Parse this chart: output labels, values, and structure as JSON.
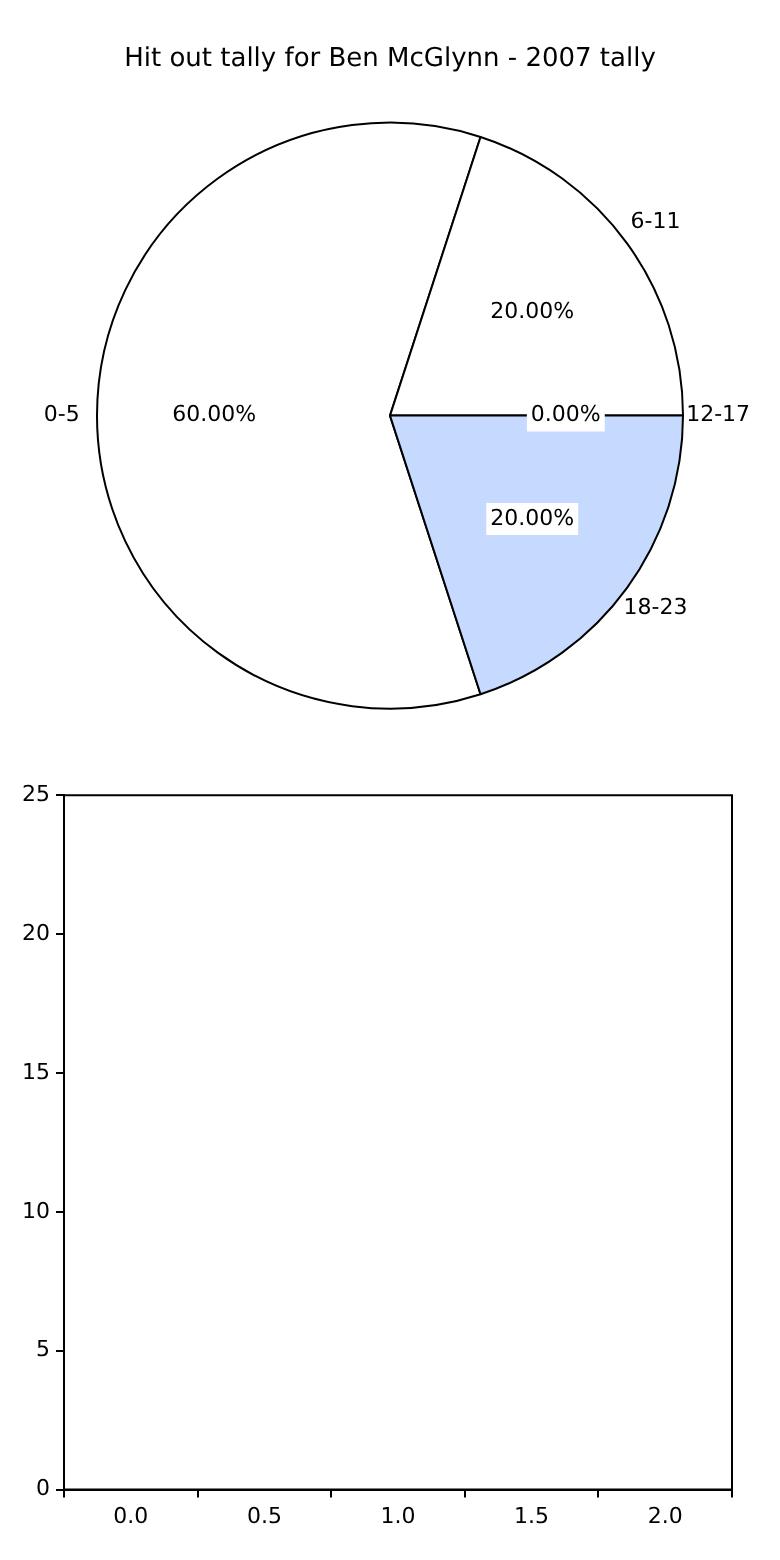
{
  "chart_data": [
    {
      "type": "pie",
      "title": "Hit out tally for Ben McGlynn - 2007 tally",
      "categories": [
        "0-5",
        "6-11",
        "12-17",
        "18-23"
      ],
      "values": [
        60,
        20,
        0,
        20
      ],
      "value_labels": [
        "60.00%",
        "20.00%",
        "0.00%",
        "20.00%"
      ],
      "colors": [
        "#ffffff",
        "#ffffff",
        "#ffffff",
        "#c6d9ff"
      ],
      "legend": false
    },
    {
      "type": "bar",
      "xlim": [
        -0.25,
        2.25
      ],
      "xticks": [
        {
          "value": 0,
          "label": "0.0"
        },
        {
          "value": 0.5,
          "label": "0.5"
        },
        {
          "value": 1,
          "label": "1.0"
        },
        {
          "value": 1.5,
          "label": "1.5"
        },
        {
          "value": 2,
          "label": "2.0"
        }
      ],
      "ylim": [
        0,
        25
      ],
      "yticks": [
        0,
        5,
        10,
        15,
        20,
        25
      ],
      "legend": false
    }
  ]
}
